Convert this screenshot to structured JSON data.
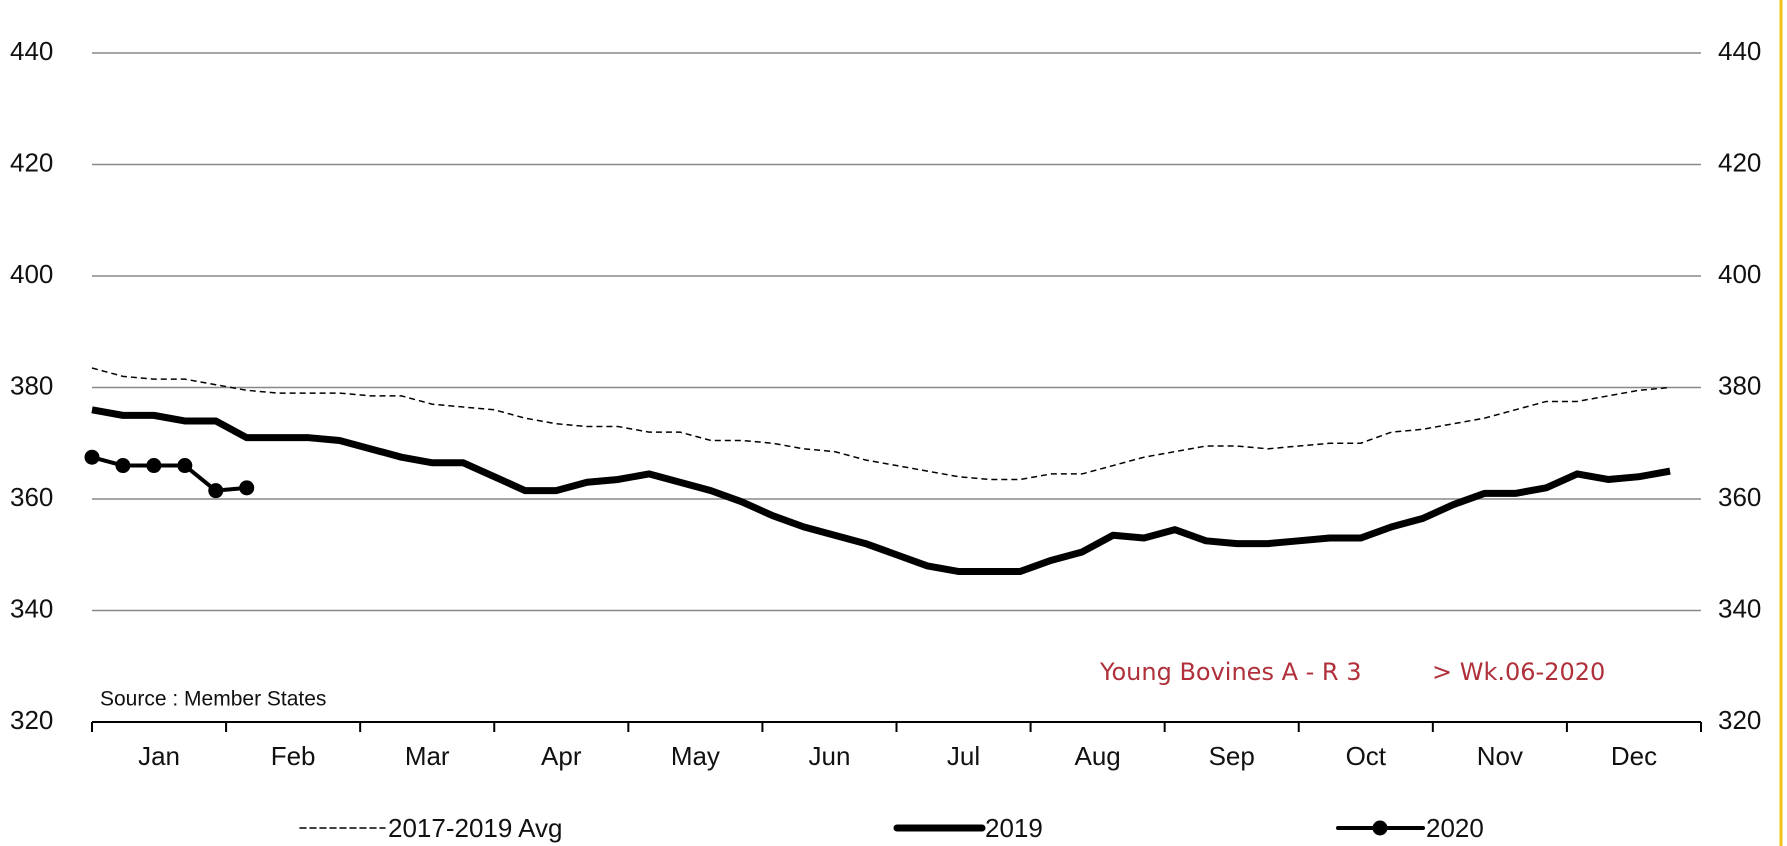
{
  "chart_data": {
    "type": "line",
    "annotations": [
      "Source : Member States",
      "Young Bovines A - R 3",
      "> Wk.06-2020"
    ],
    "months": [
      "Jan",
      "Feb",
      "Mar",
      "Apr",
      "May",
      "Jun",
      "Jul",
      "Aug",
      "Sep",
      "Oct",
      "Nov",
      "Dec"
    ],
    "series": [
      {
        "name": "2017-2019 Avg",
        "color": "#000000",
        "style": "dashed",
        "values": [
          383.5,
          382,
          381.5,
          381.5,
          380.5,
          379.5,
          379,
          379,
          379,
          378.5,
          378.5,
          377,
          376.5,
          376,
          374.5,
          373.5,
          373,
          373,
          372,
          372,
          370.5,
          370.5,
          370,
          369,
          368.5,
          367,
          366,
          365,
          364,
          363.5,
          363.5,
          364.5,
          364.5,
          366,
          367.5,
          368.5,
          369.5,
          369.5,
          369,
          369.5,
          370,
          370,
          372,
          372.5,
          373.5,
          374.5,
          376,
          377.5,
          377.5,
          378.5,
          379.5,
          380
        ]
      },
      {
        "name": "2019",
        "color": "#000000",
        "style": "thick",
        "values": [
          376,
          375,
          375,
          374,
          374,
          371,
          371,
          371,
          370.5,
          369,
          367.5,
          366.5,
          366.5,
          364,
          361.5,
          361.5,
          363,
          363.5,
          364.5,
          363,
          361.5,
          359.5,
          357,
          355,
          353.5,
          352,
          350,
          348,
          347,
          347,
          347,
          349,
          350.5,
          353.5,
          353,
          354.5,
          352.5,
          352,
          352,
          352.5,
          353,
          353,
          355,
          356.5,
          359,
          361,
          361,
          362,
          364.5,
          363.5,
          364,
          365
        ]
      },
      {
        "name": "2020",
        "color": "#000000",
        "style": "markers",
        "values": [
          367.5,
          366,
          366,
          366,
          361.5,
          362,
          null,
          null,
          null,
          null,
          null,
          null,
          null,
          null,
          null,
          null,
          null,
          null,
          null,
          null,
          null,
          null,
          null,
          null,
          null,
          null,
          null,
          null,
          null,
          null,
          null,
          null,
          null,
          null,
          null,
          null,
          null,
          null,
          null,
          null,
          null,
          null,
          null,
          null,
          null,
          null,
          null,
          null,
          null,
          null,
          null,
          null
        ]
      }
    ],
    "ylim": [
      320,
      440
    ],
    "yticks": [
      320,
      340,
      360,
      380,
      400,
      420,
      440
    ],
    "y2lim": [
      320,
      440
    ],
    "y2ticks": [
      320,
      340,
      360,
      380,
      400,
      420,
      440
    ],
    "grid": true
  }
}
